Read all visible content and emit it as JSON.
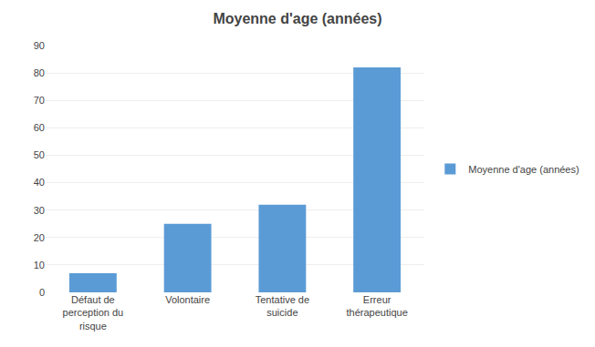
{
  "chart_data": {
    "type": "bar",
    "title": "Moyenne d'age (années)",
    "categories": [
      "Défaut de\nperception du\nrisque",
      "Volontaire",
      "Tentative de\nsuicide",
      "Erreur\nthérapeutique"
    ],
    "series": [
      {
        "name": "Moyenne d'age (années)",
        "color": "#5B9BD5",
        "values": [
          7,
          25,
          32,
          82
        ]
      }
    ],
    "ylim": [
      0,
      90
    ],
    "yticks": [
      0,
      10,
      20,
      30,
      40,
      50,
      60,
      70,
      80,
      90
    ],
    "grid": true,
    "legend": "right"
  }
}
